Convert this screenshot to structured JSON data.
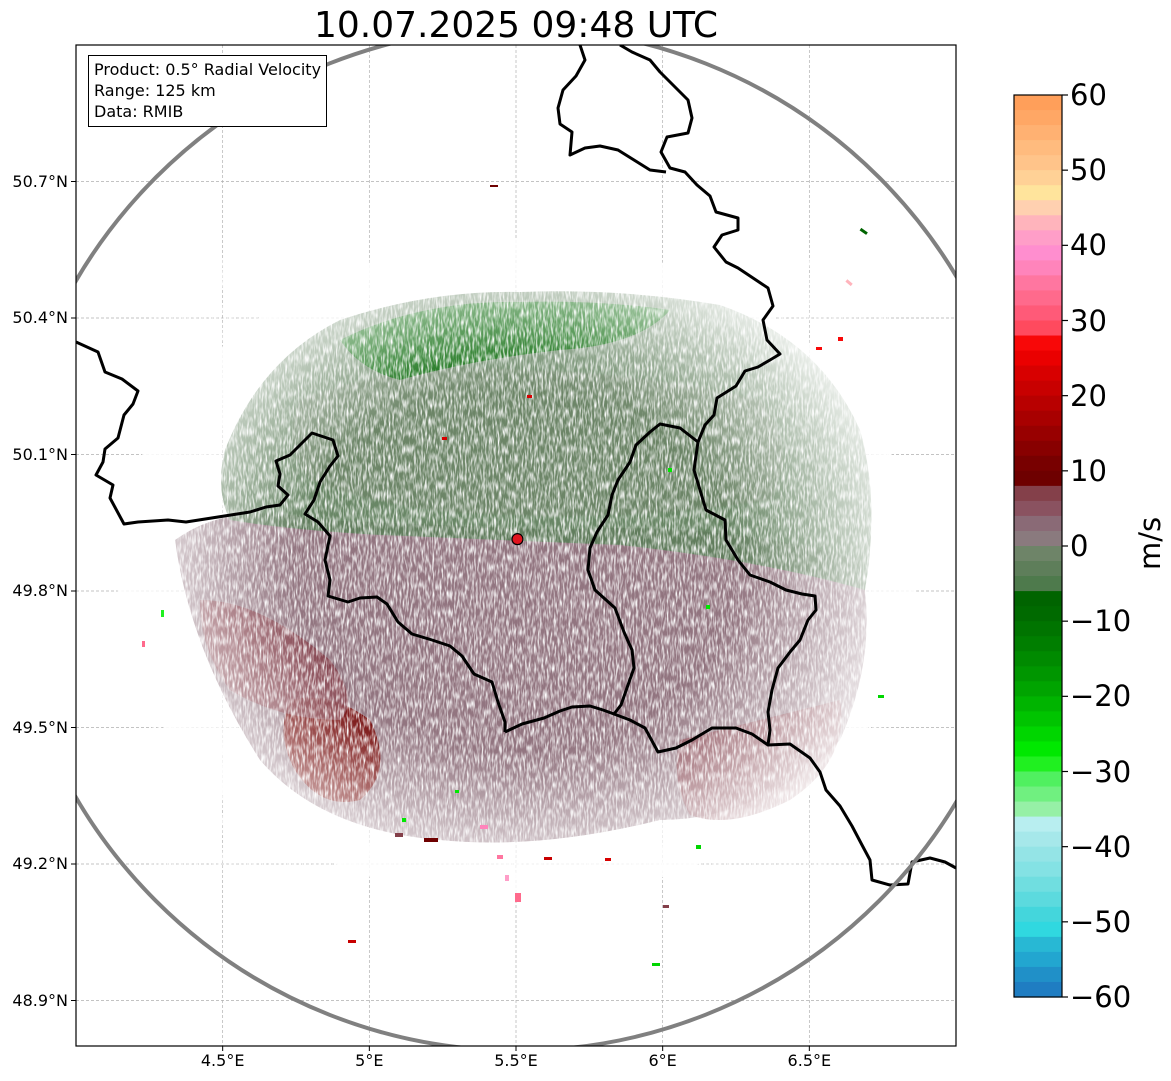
{
  "title": "10.07.2025 09:48 UTC",
  "info_box": {
    "product": "Product: 0.5° Radial Velocity",
    "range": "Range: 125 km",
    "data": "Data: RMIB"
  },
  "map": {
    "extent_lon": [
      4.0,
      7.0
    ],
    "extent_lat": [
      48.8,
      51.0
    ],
    "radar_site": {
      "lon": 5.505,
      "lat": 49.914
    },
    "range_km": 125,
    "lat_ticks": [
      {
        "value": 50.7,
        "label": "50.7°N"
      },
      {
        "value": 50.4,
        "label": "50.4°N"
      },
      {
        "value": 50.1,
        "label": "50.1°N"
      },
      {
        "value": 49.8,
        "label": "49.8°N"
      },
      {
        "value": 49.5,
        "label": "49.5°N"
      },
      {
        "value": 49.2,
        "label": "49.2°N"
      },
      {
        "value": 48.9,
        "label": "48.9°N"
      }
    ],
    "lon_ticks": [
      {
        "value": 4.5,
        "label": "4.5°E"
      },
      {
        "value": 5.0,
        "label": "5°E"
      },
      {
        "value": 5.5,
        "label": "5.5°E"
      },
      {
        "value": 6.0,
        "label": "6°E"
      },
      {
        "value": 6.5,
        "label": "6.5°E"
      }
    ],
    "grid": true,
    "colors": {
      "range_ring": "#808080",
      "border": "#000000",
      "grid": "#b0b0b0",
      "radar_site": "#e0141e"
    }
  },
  "colorbar": {
    "unit": "m/s",
    "min": -60,
    "max": 60,
    "ticks": [
      {
        "value": 60,
        "label": "60"
      },
      {
        "value": 50,
        "label": "50"
      },
      {
        "value": 40,
        "label": "40"
      },
      {
        "value": 30,
        "label": "30"
      },
      {
        "value": 20,
        "label": "20"
      },
      {
        "value": 10,
        "label": "10"
      },
      {
        "value": 0,
        "label": "0"
      },
      {
        "value": -10,
        "label": "−10"
      },
      {
        "value": -20,
        "label": "−20"
      },
      {
        "value": -30,
        "label": "−30"
      },
      {
        "value": -40,
        "label": "−40"
      },
      {
        "value": -50,
        "label": "−50"
      },
      {
        "value": -60,
        "label": "−60"
      }
    ],
    "stops": [
      {
        "from": 58,
        "to": 60,
        "color": "#ff9f5a"
      },
      {
        "from": 56,
        "to": 58,
        "color": "#ffa765"
      },
      {
        "from": 54,
        "to": 56,
        "color": "#ffb172"
      },
      {
        "from": 52,
        "to": 54,
        "color": "#ffbb7e"
      },
      {
        "from": 50,
        "to": 52,
        "color": "#ffc48a"
      },
      {
        "from": 48,
        "to": 50,
        "color": "#ffd196"
      },
      {
        "from": 46,
        "to": 48,
        "color": "#ffe49c"
      },
      {
        "from": 44,
        "to": 46,
        "color": "#ffd0b0"
      },
      {
        "from": 42,
        "to": 44,
        "color": "#ffb4bc"
      },
      {
        "from": 40,
        "to": 42,
        "color": "#ff9ec8"
      },
      {
        "from": 38,
        "to": 40,
        "color": "#ff8ecf"
      },
      {
        "from": 36,
        "to": 38,
        "color": "#ff84bb"
      },
      {
        "from": 34,
        "to": 36,
        "color": "#ff76a0"
      },
      {
        "from": 32,
        "to": 34,
        "color": "#ff6a8c"
      },
      {
        "from": 30,
        "to": 32,
        "color": "#ff5a78"
      },
      {
        "from": 28,
        "to": 30,
        "color": "#ff4a5e"
      },
      {
        "from": 26,
        "to": 28,
        "color": "#f80808"
      },
      {
        "from": 24,
        "to": 26,
        "color": "#ea0000"
      },
      {
        "from": 22,
        "to": 24,
        "color": "#d80000"
      },
      {
        "from": 20,
        "to": 22,
        "color": "#c80000"
      },
      {
        "from": 18,
        "to": 20,
        "color": "#b80000"
      },
      {
        "from": 16,
        "to": 18,
        "color": "#a80000"
      },
      {
        "from": 14,
        "to": 16,
        "color": "#980000"
      },
      {
        "from": 12,
        "to": 14,
        "color": "#880000"
      },
      {
        "from": 10,
        "to": 12,
        "color": "#780000"
      },
      {
        "from": 8,
        "to": 10,
        "color": "#6e0000"
      },
      {
        "from": 6,
        "to": 8,
        "color": "#84404a"
      },
      {
        "from": 4,
        "to": 6,
        "color": "#8a5260"
      },
      {
        "from": 2,
        "to": 4,
        "color": "#8a6a76"
      },
      {
        "from": 0,
        "to": 2,
        "color": "#8a7a7e"
      },
      {
        "from": -2,
        "to": 0,
        "color": "#6e8468"
      },
      {
        "from": -4,
        "to": -2,
        "color": "#5e7e5a"
      },
      {
        "from": -6,
        "to": -4,
        "color": "#4e7a4c"
      },
      {
        "from": -8,
        "to": -6,
        "color": "#006400"
      },
      {
        "from": -10,
        "to": -8,
        "color": "#006a00"
      },
      {
        "from": -12,
        "to": -10,
        "color": "#007400"
      },
      {
        "from": -14,
        "to": -12,
        "color": "#007e00"
      },
      {
        "from": -16,
        "to": -14,
        "color": "#008a00"
      },
      {
        "from": -18,
        "to": -16,
        "color": "#009600"
      },
      {
        "from": -20,
        "to": -18,
        "color": "#00a400"
      },
      {
        "from": -22,
        "to": -20,
        "color": "#00b400"
      },
      {
        "from": -24,
        "to": -22,
        "color": "#00c400"
      },
      {
        "from": -26,
        "to": -24,
        "color": "#00d600"
      },
      {
        "from": -28,
        "to": -26,
        "color": "#00e800"
      },
      {
        "from": -30,
        "to": -28,
        "color": "#20f020"
      },
      {
        "from": -32,
        "to": -30,
        "color": "#50f060"
      },
      {
        "from": -34,
        "to": -32,
        "color": "#70f080"
      },
      {
        "from": -36,
        "to": -34,
        "color": "#96f0a6"
      },
      {
        "from": -38,
        "to": -36,
        "color": "#b8eef0"
      },
      {
        "from": -40,
        "to": -38,
        "color": "#a6e8ea"
      },
      {
        "from": -42,
        "to": -40,
        "color": "#94e4e6"
      },
      {
        "from": -44,
        "to": -42,
        "color": "#84e2e4"
      },
      {
        "from": -46,
        "to": -44,
        "color": "#70dee0"
      },
      {
        "from": -48,
        "to": -46,
        "color": "#5cdade"
      },
      {
        "from": -50,
        "to": -48,
        "color": "#44d6dc"
      },
      {
        "from": -52,
        "to": -50,
        "color": "#30d8e0"
      },
      {
        "from": -54,
        "to": -52,
        "color": "#28b8d4"
      },
      {
        "from": -56,
        "to": -54,
        "color": "#22a6d0"
      },
      {
        "from": -58,
        "to": -56,
        "color": "#2090c8"
      },
      {
        "from": -60,
        "to": -58,
        "color": "#1f7dc2"
      }
    ]
  },
  "echo_regions": [
    {
      "name": "inbound-north",
      "velocity_range": [
        -4,
        -1
      ]
    },
    {
      "name": "strong-inbound-north-arc",
      "velocity_range": [
        -9,
        -7
      ]
    },
    {
      "name": "outbound-south",
      "velocity_range": [
        1,
        6
      ]
    },
    {
      "name": "strong-outbound-southwest",
      "velocity_range": [
        8,
        12
      ]
    }
  ]
}
